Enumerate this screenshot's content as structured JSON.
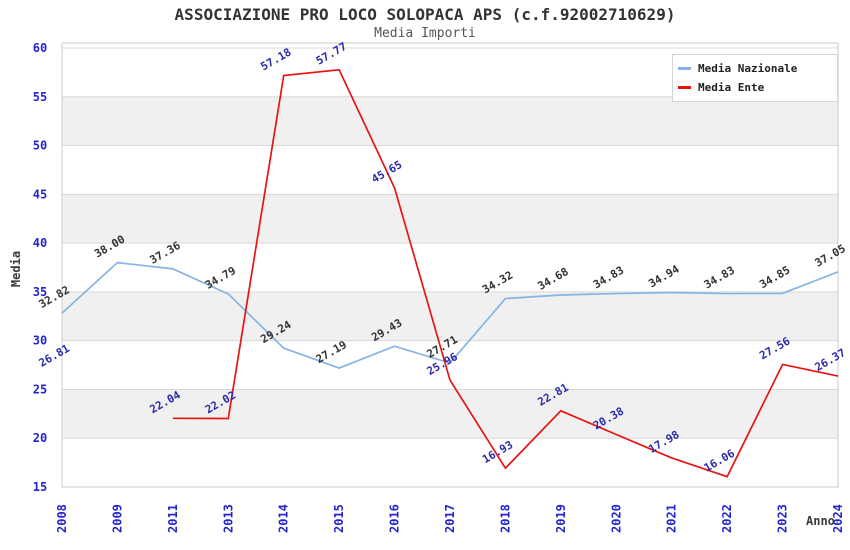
{
  "header": {
    "title": "ASSOCIAZIONE PRO LOCO SOLOPACA APS (c.f.92002710629)",
    "subtitle": "Media Importi"
  },
  "colors": {
    "background": "#ffffff",
    "band": "#f0f0f0",
    "gridline": "#d9d9d9",
    "plot_border": "#cccccc",
    "tick_label": "#2424cc",
    "title_text": "#333333",
    "subtitle_text": "#555555",
    "axis_title_text": "#3a3a3a",
    "nazionale_line": "#85b4e4",
    "ente_line": "#e81414",
    "nazionale_label": "#333333",
    "ente_label": "#2b2bab"
  },
  "chart_data": {
    "type": "line",
    "title": "ASSOCIAZIONE PRO LOCO SOLOPACA APS (c.f.92002710629)",
    "subtitle": "Media Importi",
    "xlabel": "Anno",
    "ylabel": "Media",
    "categories": [
      "2008",
      "2009",
      "2011",
      "2013",
      "2014",
      "2015",
      "2016",
      "2017",
      "2018",
      "2019",
      "2020",
      "2021",
      "2022",
      "2023",
      "2024"
    ],
    "ylim": [
      15,
      60
    ],
    "ytick_step": 5,
    "yticks": [
      15,
      20,
      25,
      30,
      35,
      40,
      45,
      50,
      55,
      60
    ],
    "grid": "horizontal gridlines with alternating gray bands",
    "legend_position": "top-right",
    "data_label_rotation_deg": -30,
    "series": [
      {
        "name": "Media Nazionale",
        "color": "#85b4e4",
        "label_color": "#333333",
        "values": [
          32.82,
          38.0,
          37.36,
          34.79,
          29.24,
          27.19,
          29.43,
          27.71,
          34.32,
          34.68,
          34.83,
          34.94,
          34.83,
          34.85,
          37.05
        ]
      },
      {
        "name": "Media Ente",
        "color": "#e81414",
        "label_color": "#2b2bab",
        "values": [
          26.81,
          null,
          22.04,
          22.02,
          57.18,
          57.77,
          45.65,
          25.96,
          16.93,
          22.81,
          20.38,
          17.98,
          16.06,
          27.56,
          26.37
        ]
      }
    ]
  }
}
